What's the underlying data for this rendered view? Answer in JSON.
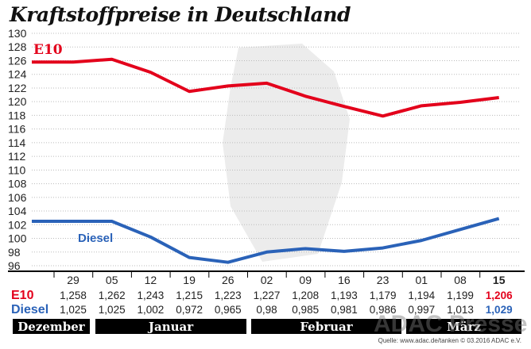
{
  "chart_data": {
    "type": "line",
    "title": "Kraftstoffpreise in Deutschland",
    "y_ticks": [
      96,
      98,
      100,
      102,
      104,
      106,
      108,
      110,
      112,
      114,
      116,
      118,
      120,
      122,
      124,
      126,
      128,
      130
    ],
    "ylim": [
      96,
      130
    ],
    "grid": true,
    "categories": [
      "29",
      "05",
      "12",
      "19",
      "26",
      "02",
      "09",
      "16",
      "23",
      "01",
      "08",
      "15"
    ],
    "months": [
      "Dezember",
      "Januar",
      "Februar",
      "März"
    ],
    "series": [
      {
        "name": "E10",
        "color": "#e3001b",
        "values": [
          1.258,
          1.262,
          1.243,
          1.215,
          1.223,
          1.227,
          1.208,
          1.193,
          1.179,
          1.194,
          1.199,
          1.206
        ],
        "labels": [
          "1,258",
          "1,262",
          "1,243",
          "1,215",
          "1,223",
          "1,227",
          "1,208",
          "1,193",
          "1,179",
          "1,194",
          "1,199",
          "1,206"
        ]
      },
      {
        "name": "Diesel",
        "color": "#2a62b8",
        "values": [
          1.025,
          1.025,
          1.002,
          0.972,
          0.965,
          0.98,
          0.985,
          0.981,
          0.986,
          0.997,
          1.013,
          1.029
        ],
        "labels": [
          "1,025",
          "1,025",
          "1,002",
          "0,972",
          "0,965",
          "0,98",
          "0,985",
          "0,981",
          "0,986",
          "0,997",
          "1,013",
          "1,029"
        ]
      }
    ]
  },
  "source": "Quelle: www.adac.de/tanken  © 03.2016  ADAC e.V.",
  "watermark": "ADAC Presse"
}
